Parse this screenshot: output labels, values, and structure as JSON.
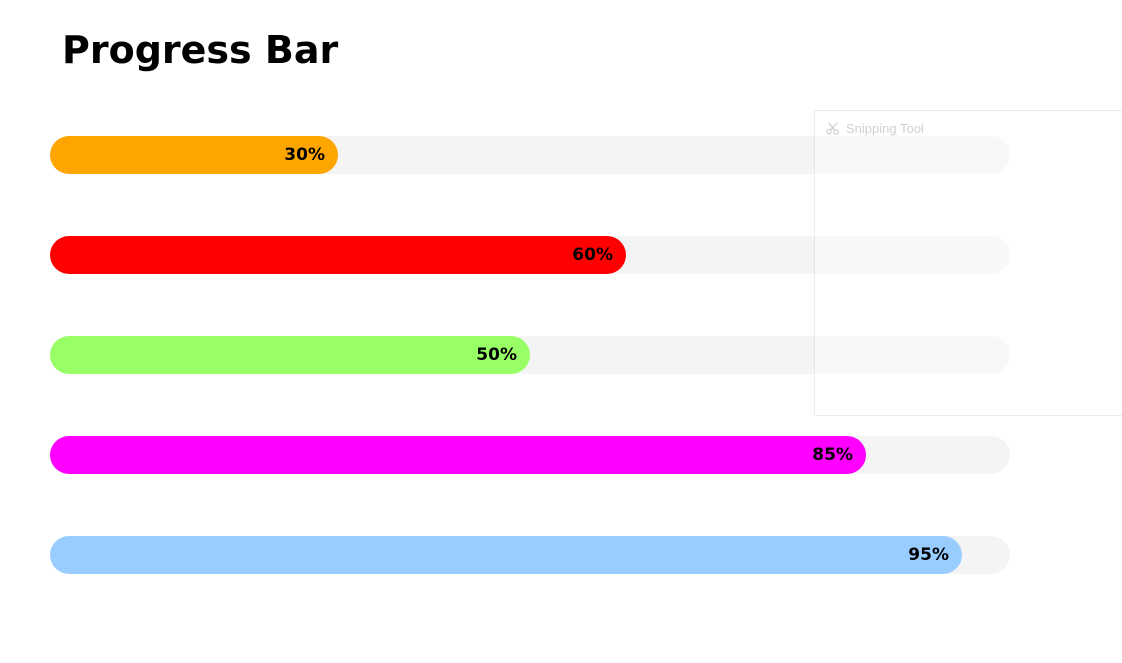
{
  "page": {
    "title": "Progress Bar"
  },
  "progress_bars": [
    {
      "percent": 30,
      "label": "30%",
      "color": "#ffa500"
    },
    {
      "percent": 60,
      "label": "60%",
      "color": "#ff0000"
    },
    {
      "percent": 50,
      "label": "50%",
      "color": "#99ff66"
    },
    {
      "percent": 85,
      "label": "85%",
      "color": "#ff00ff"
    },
    {
      "percent": 95,
      "label": "95%",
      "color": "#99ccff"
    }
  ],
  "overlay": {
    "title": "Snipping Tool",
    "icon": "scissors-icon"
  },
  "colors": {
    "track": "#f4f4f4",
    "text": "#000000"
  }
}
